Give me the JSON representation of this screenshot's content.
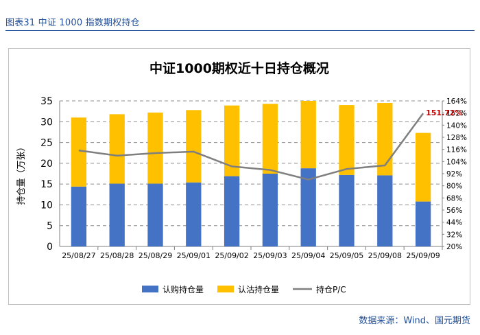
{
  "figure_title": "图表31  中证 1000 指数期权持仓",
  "source": "数据来源：Wind、国元期货",
  "colors": {
    "call": "#4472c4",
    "put": "#ffc000",
    "pc_line": "#7f7f7f",
    "pc_label": "#c00000",
    "caption": "#1f4e99"
  },
  "chart_data": {
    "type": "bar",
    "title": "中证1000期权近十日持仓概况",
    "ylabel": "持仓量（万张）",
    "ylim": [
      0,
      35
    ],
    "y_ticks": [
      "0",
      "5",
      "10",
      "15",
      "20",
      "25",
      "30",
      "35"
    ],
    "y2lim": [
      20,
      164
    ],
    "y2_ticks": [
      "20%",
      "32%",
      "44%",
      "56%",
      "68%",
      "80%",
      "92%",
      "104%",
      "116%",
      "128%",
      "140%",
      "152%",
      "164%"
    ],
    "categories": [
      "25/08/27",
      "25/08/28",
      "25/08/29",
      "25/09/01",
      "25/09/02",
      "25/09/03",
      "25/09/04",
      "25/09/05",
      "25/09/08",
      "25/09/09"
    ],
    "series": [
      {
        "name": "认购持仓量",
        "kind": "stacked-bar",
        "axis": "left",
        "values": [
          14.4,
          15.1,
          15.1,
          15.4,
          16.9,
          17.5,
          18.8,
          17.2,
          17.1,
          10.8
        ]
      },
      {
        "name": "认沽持仓量",
        "kind": "stacked-bar",
        "axis": "left",
        "values": [
          16.6,
          16.7,
          17.1,
          17.4,
          17.0,
          16.8,
          16.2,
          16.8,
          17.4,
          16.5
        ]
      },
      {
        "name": "持仓P/C",
        "kind": "line",
        "axis": "right",
        "values": [
          115.0,
          109.8,
          112.4,
          113.8,
          99.2,
          95.7,
          86.2,
          96.6,
          100.2,
          151.7
        ]
      }
    ],
    "last_label": "151.72%",
    "grid": true,
    "legend_position": "bottom"
  }
}
